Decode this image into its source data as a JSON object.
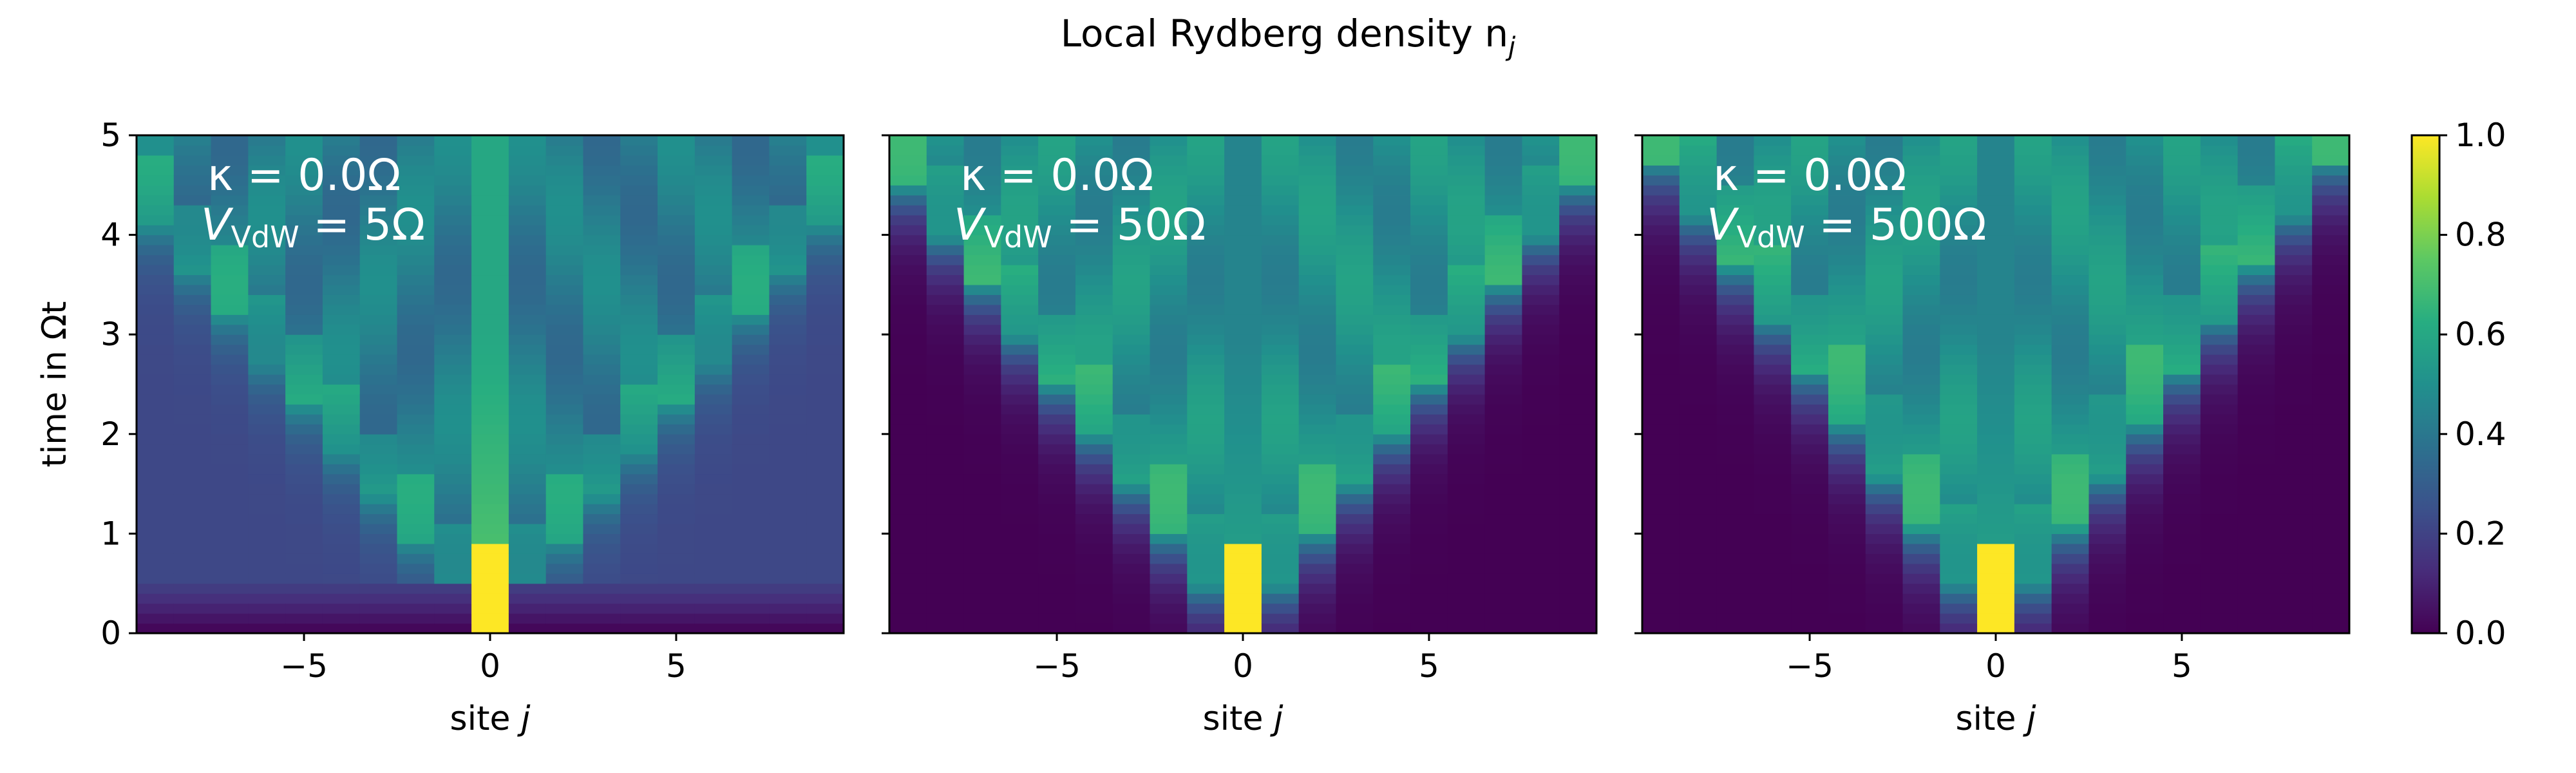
{
  "suptitle": "Local Rydberg density n",
  "suptitle_sub": "j",
  "colorbar": {
    "ticks": [
      "0.0",
      "0.2",
      "0.4",
      "0.6",
      "0.8",
      "1.0"
    ],
    "range": [
      0,
      1
    ],
    "colormap": "viridis"
  },
  "chart_data": [
    {
      "type": "heatmap",
      "xlabel": "site j",
      "ylabel": "time in Ωt",
      "xticks": [
        "−5",
        "0",
        "5"
      ],
      "yticks": [
        "0",
        "1",
        "2",
        "3",
        "4",
        "5"
      ],
      "xlim": [
        -9.5,
        9.5
      ],
      "ylim": [
        0,
        5
      ],
      "annotation": [
        "κ = 0.0Ω",
        "V",
        "VdW",
        " = 5Ω"
      ],
      "kappa": 0.0,
      "V_VdW": 5,
      "profile": {
        "bg": 0.22,
        "center_peak": 0.75,
        "front_speed": 2.2,
        "front_val": 0.5,
        "inner_val": 0.42
      }
    },
    {
      "type": "heatmap",
      "xlabel": "site j",
      "ylabel": "",
      "xticks": [
        "−5",
        "0",
        "5"
      ],
      "yticks": [
        "0",
        "1",
        "2",
        "3",
        "4",
        "5"
      ],
      "xlim": [
        -9.5,
        9.5
      ],
      "ylim": [
        0,
        5
      ],
      "annotation": [
        "κ = 0.0Ω",
        "V",
        "VdW",
        " = 50Ω"
      ],
      "kappa": 0.0,
      "V_VdW": 50,
      "profile": {
        "bg": 0.0,
        "center_peak": 0.6,
        "front_speed": 2.0,
        "front_val": 0.55,
        "inner_val": 0.5
      }
    },
    {
      "type": "heatmap",
      "xlabel": "site j",
      "ylabel": "",
      "xticks": [
        "−5",
        "0",
        "5"
      ],
      "yticks": [
        "0",
        "1",
        "2",
        "3",
        "4",
        "5"
      ],
      "xlim": [
        -9.5,
        9.5
      ],
      "ylim": [
        0,
        5
      ],
      "annotation": [
        "κ = 0.0Ω",
        "V",
        "VdW",
        " = 500Ω"
      ],
      "kappa": 0.0,
      "V_VdW": 500,
      "profile": {
        "bg": 0.0,
        "center_peak": 0.6,
        "front_speed": 1.9,
        "front_val": 0.55,
        "inner_val": 0.5
      }
    }
  ]
}
